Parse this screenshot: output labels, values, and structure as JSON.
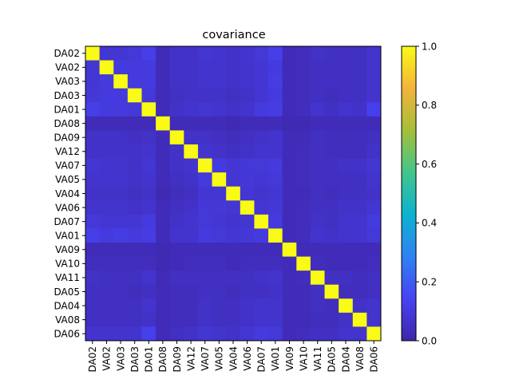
{
  "chart_data": {
    "type": "heatmap",
    "title": "covariance",
    "labels": [
      "DA02",
      "VA02",
      "VA03",
      "DA03",
      "DA01",
      "DA08",
      "DA09",
      "VA12",
      "VA07",
      "VA05",
      "VA04",
      "VA06",
      "DA07",
      "VA01",
      "VA09",
      "VA10",
      "VA11",
      "DA05",
      "DA04",
      "VA08",
      "DA06"
    ],
    "colorbar": {
      "min": 0.0,
      "max": 1.0,
      "ticks": [
        "0.0",
        "0.2",
        "0.4",
        "0.6",
        "0.8",
        "1.0"
      ]
    },
    "colormap_stops": [
      "#3e26a8",
      "#4743f3",
      "#2f82f3",
      "#0db2cf",
      "#43c58c",
      "#a5be3a",
      "#f2b43b",
      "#f9fb15"
    ],
    "values": [
      [
        1.0,
        0.08,
        0.08,
        0.09,
        0.12,
        0.03,
        0.06,
        0.06,
        0.08,
        0.07,
        0.06,
        0.07,
        0.09,
        0.12,
        0.03,
        0.04,
        0.06,
        0.05,
        0.05,
        0.05,
        0.07
      ],
      [
        0.08,
        1.0,
        0.1,
        0.1,
        0.1,
        0.03,
        0.06,
        0.06,
        0.07,
        0.07,
        0.06,
        0.07,
        0.08,
        0.1,
        0.03,
        0.04,
        0.05,
        0.05,
        0.05,
        0.05,
        0.07
      ],
      [
        0.08,
        0.1,
        1.0,
        0.1,
        0.1,
        0.03,
        0.06,
        0.06,
        0.07,
        0.07,
        0.06,
        0.07,
        0.08,
        0.11,
        0.03,
        0.04,
        0.05,
        0.05,
        0.05,
        0.05,
        0.07
      ],
      [
        0.09,
        0.1,
        0.1,
        1.0,
        0.09,
        0.03,
        0.05,
        0.06,
        0.06,
        0.06,
        0.05,
        0.06,
        0.08,
        0.1,
        0.03,
        0.04,
        0.05,
        0.04,
        0.05,
        0.05,
        0.07
      ],
      [
        0.12,
        0.1,
        0.1,
        0.09,
        1.0,
        0.03,
        0.06,
        0.07,
        0.08,
        0.07,
        0.06,
        0.07,
        0.1,
        0.11,
        0.03,
        0.04,
        0.07,
        0.05,
        0.07,
        0.06,
        0.13
      ],
      [
        0.03,
        0.03,
        0.03,
        0.03,
        0.03,
        1.0,
        0.03,
        0.03,
        0.03,
        0.03,
        0.02,
        0.03,
        0.03,
        0.03,
        0.02,
        0.02,
        0.03,
        0.03,
        0.03,
        0.03,
        0.03
      ],
      [
        0.06,
        0.06,
        0.06,
        0.05,
        0.06,
        0.03,
        1.0,
        0.06,
        0.06,
        0.05,
        0.04,
        0.05,
        0.06,
        0.07,
        0.03,
        0.03,
        0.05,
        0.04,
        0.04,
        0.04,
        0.05
      ],
      [
        0.06,
        0.06,
        0.06,
        0.06,
        0.07,
        0.03,
        0.06,
        1.0,
        0.07,
        0.06,
        0.05,
        0.06,
        0.07,
        0.07,
        0.03,
        0.04,
        0.05,
        0.04,
        0.04,
        0.04,
        0.06
      ],
      [
        0.08,
        0.07,
        0.07,
        0.06,
        0.08,
        0.03,
        0.06,
        0.07,
        1.0,
        0.1,
        0.08,
        0.09,
        0.09,
        0.1,
        0.03,
        0.04,
        0.05,
        0.05,
        0.06,
        0.06,
        0.08
      ],
      [
        0.07,
        0.07,
        0.07,
        0.06,
        0.07,
        0.03,
        0.05,
        0.06,
        0.1,
        1.0,
        0.08,
        0.09,
        0.08,
        0.09,
        0.03,
        0.04,
        0.05,
        0.05,
        0.05,
        0.05,
        0.07
      ],
      [
        0.06,
        0.06,
        0.06,
        0.05,
        0.06,
        0.02,
        0.04,
        0.05,
        0.08,
        0.08,
        1.0,
        0.08,
        0.07,
        0.08,
        0.03,
        0.03,
        0.05,
        0.04,
        0.05,
        0.05,
        0.06
      ],
      [
        0.07,
        0.07,
        0.07,
        0.06,
        0.07,
        0.03,
        0.05,
        0.06,
        0.09,
        0.09,
        0.08,
        1.0,
        0.08,
        0.09,
        0.03,
        0.04,
        0.05,
        0.05,
        0.06,
        0.06,
        0.08
      ],
      [
        0.09,
        0.08,
        0.08,
        0.08,
        0.1,
        0.03,
        0.06,
        0.07,
        0.09,
        0.08,
        0.07,
        0.08,
        1.0,
        0.1,
        0.03,
        0.04,
        0.06,
        0.05,
        0.07,
        0.07,
        0.1
      ],
      [
        0.12,
        0.1,
        0.11,
        0.1,
        0.11,
        0.03,
        0.07,
        0.07,
        0.1,
        0.09,
        0.08,
        0.09,
        0.1,
        1.0,
        0.03,
        0.04,
        0.07,
        0.06,
        0.07,
        0.07,
        0.09
      ],
      [
        0.03,
        0.03,
        0.03,
        0.03,
        0.03,
        0.02,
        0.03,
        0.03,
        0.03,
        0.03,
        0.03,
        0.03,
        0.03,
        0.03,
        1.0,
        0.03,
        0.03,
        0.03,
        0.03,
        0.03,
        0.03
      ],
      [
        0.04,
        0.04,
        0.04,
        0.04,
        0.04,
        0.02,
        0.03,
        0.04,
        0.04,
        0.04,
        0.03,
        0.04,
        0.04,
        0.04,
        0.03,
        1.0,
        0.04,
        0.03,
        0.03,
        0.03,
        0.04
      ],
      [
        0.06,
        0.05,
        0.05,
        0.05,
        0.07,
        0.03,
        0.05,
        0.05,
        0.05,
        0.05,
        0.05,
        0.05,
        0.06,
        0.07,
        0.03,
        0.04,
        1.0,
        0.05,
        0.05,
        0.04,
        0.05
      ],
      [
        0.05,
        0.05,
        0.05,
        0.04,
        0.05,
        0.03,
        0.04,
        0.04,
        0.05,
        0.05,
        0.04,
        0.05,
        0.05,
        0.06,
        0.03,
        0.03,
        0.05,
        1.0,
        0.04,
        0.04,
        0.05
      ],
      [
        0.05,
        0.05,
        0.05,
        0.05,
        0.07,
        0.03,
        0.04,
        0.04,
        0.06,
        0.05,
        0.05,
        0.06,
        0.07,
        0.07,
        0.03,
        0.03,
        0.05,
        0.04,
        1.0,
        0.06,
        0.07
      ],
      [
        0.05,
        0.05,
        0.05,
        0.05,
        0.06,
        0.03,
        0.04,
        0.04,
        0.06,
        0.05,
        0.05,
        0.06,
        0.07,
        0.07,
        0.03,
        0.03,
        0.04,
        0.04,
        0.06,
        1.0,
        0.07
      ],
      [
        0.07,
        0.07,
        0.07,
        0.07,
        0.13,
        0.03,
        0.05,
        0.06,
        0.08,
        0.07,
        0.06,
        0.08,
        0.1,
        0.09,
        0.03,
        0.04,
        0.05,
        0.05,
        0.07,
        0.07,
        1.0
      ]
    ]
  }
}
